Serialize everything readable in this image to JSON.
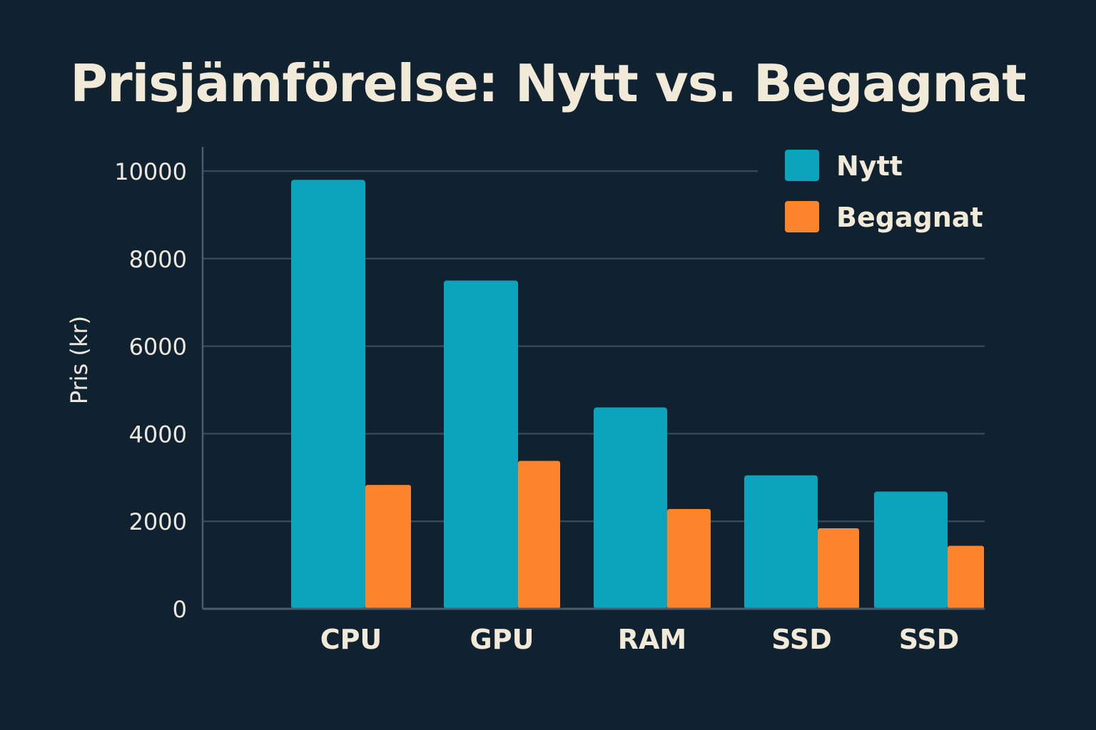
{
  "chart_data": {
    "type": "bar",
    "title": "Prisjämförelse: Nytt vs. Begagnat",
    "xlabel": "",
    "ylabel": "Pris (kr)",
    "ylim": [
      0,
      10000
    ],
    "yticks": [
      0,
      2000,
      4000,
      6000,
      8000,
      10000
    ],
    "categories": [
      "CPU",
      "GPU",
      "RAM",
      "SSD",
      "SSD"
    ],
    "series": [
      {
        "name": "Nytt",
        "color": "#0ca3bc",
        "values": [
          9800,
          7500,
          4600,
          3050,
          2680
        ]
      },
      {
        "name": "Begagnat",
        "color": "#fc842a",
        "values": [
          2830,
          3380,
          2280,
          1840,
          1440
        ]
      }
    ],
    "grid": "horizontal",
    "legend_position": "top-right"
  }
}
